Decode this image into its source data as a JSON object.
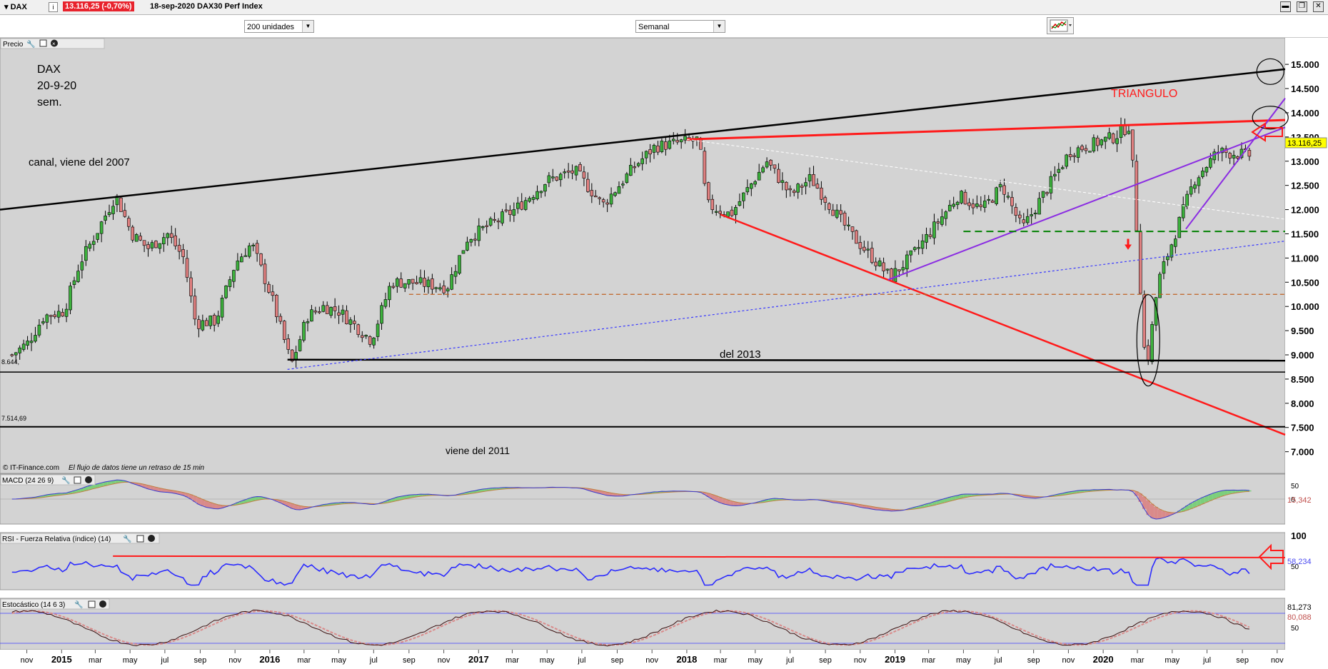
{
  "window": {
    "ticker": "▾ DAX",
    "info_icon": "i",
    "quote": "13.116,25 (-0,70%)",
    "description": "18-sep-2020 DAX30 Perf Index",
    "window_buttons": [
      "▬",
      "❐",
      "✕"
    ]
  },
  "toolbar": {
    "units_select": "200 unidades",
    "period_select": "Semanal",
    "chart_type_icon": "chart-type-icon"
  },
  "panels": {
    "price_label": "Precio",
    "macd_label": "MACD (24 26 9)",
    "rsi_label": "RSI - Fuerza Relativa (índice) (14)",
    "stoch_label": "Estocástico (14 6 3)",
    "copyright": "© IT-Finance.com",
    "delay_note": "El flujo de datos tiene un retraso de 15 min"
  },
  "annotations": {
    "title_line1": "DAX",
    "title_line2": "20-9-20",
    "title_line3": "sem.",
    "canal": "canal, viene del  2007",
    "triangulo": "TRIANGULO",
    "del2013": "del 2013",
    "viene2011": "viene del 2011",
    "level_low1": "8.644,",
    "level_low2": "7.514,69",
    "last_price": "13.116,25",
    "macd_value": "15,342",
    "rsi_value": "58,234",
    "stoch_value1": "81,273",
    "stoch_value2": "80,088"
  },
  "colors": {
    "up_candle": "#3cb13c",
    "down_candle": "#e08080",
    "channel": "#000000",
    "red_line": "#ff1a1a",
    "purple": "#8a2be2",
    "green_dash": "#008000",
    "brown_dash": "#c06020",
    "blue_dot": "#3a3aff",
    "panel_bg": "#d3d3d3",
    "last_price_bg": "#ffff00"
  },
  "chart_data": {
    "type": "candlestick",
    "timeframe": "weekly",
    "y_ticks": [
      "15.000",
      "14.500",
      "14.000",
      "13.500",
      "13.000",
      "12.500",
      "12.000",
      "11.500",
      "11.000",
      "10.500",
      "10.000",
      "9.500",
      "9.000",
      "8.500",
      "8.000",
      "7.500",
      "7.000"
    ],
    "ylim": [
      6700,
      15400
    ],
    "x_labels": [
      "nov",
      "2015",
      "mar",
      "may",
      "jul",
      "sep",
      "nov",
      "2016",
      "mar",
      "may",
      "jul",
      "sep",
      "nov",
      "2017",
      "mar",
      "may",
      "jul",
      "sep",
      "nov",
      "2018",
      "mar",
      "may",
      "jul",
      "sep",
      "nov",
      "2019",
      "mar",
      "may",
      "jul",
      "sep",
      "nov",
      "2020",
      "mar",
      "may",
      "jul",
      "sep",
      "nov"
    ],
    "x_range": [
      "2014-10",
      "2020-11"
    ],
    "close_series": [
      [
        "2014-10-06",
        9000
      ],
      [
        "2014-11-03",
        9250
      ],
      [
        "2014-12-01",
        9800
      ],
      [
        "2015-01-05",
        9900
      ],
      [
        "2015-02-02",
        10900
      ],
      [
        "2015-03-02",
        11500
      ],
      [
        "2015-04-06",
        12300
      ],
      [
        "2015-05-04",
        11500
      ],
      [
        "2015-06-01",
        11200
      ],
      [
        "2015-07-06",
        11500
      ],
      [
        "2015-08-03",
        11000
      ],
      [
        "2015-08-24",
        9650
      ],
      [
        "2015-09-28",
        9700
      ],
      [
        "2015-11-02",
        10900
      ],
      [
        "2015-11-30",
        11300
      ],
      [
        "2016-01-04",
        10200
      ],
      [
        "2016-02-08",
        8800
      ],
      [
        "2016-03-07",
        9800
      ],
      [
        "2016-04-04",
        10000
      ],
      [
        "2016-05-02",
        9900
      ],
      [
        "2016-06-27",
        9300
      ],
      [
        "2016-08-01",
        10500
      ],
      [
        "2016-09-05",
        10500
      ],
      [
        "2016-11-07",
        10400
      ],
      [
        "2016-12-12",
        11400
      ],
      [
        "2017-01-09",
        11600
      ],
      [
        "2017-03-06",
        12000
      ],
      [
        "2017-05-01",
        12600
      ],
      [
        "2017-06-19",
        12800
      ],
      [
        "2017-08-07",
        12100
      ],
      [
        "2017-10-02",
        12900
      ],
      [
        "2017-11-06",
        13300
      ],
      [
        "2018-01-22",
        13450
      ],
      [
        "2018-02-05",
        12100
      ],
      [
        "2018-03-19",
        11900
      ],
      [
        "2018-05-21",
        13000
      ],
      [
        "2018-07-02",
        12300
      ],
      [
        "2018-08-06",
        12650
      ],
      [
        "2018-10-15",
        11500
      ],
      [
        "2018-12-24",
        10600
      ],
      [
        "2019-02-04",
        11100
      ],
      [
        "2019-04-22",
        12300
      ],
      [
        "2019-06-03",
        12000
      ],
      [
        "2019-07-08",
        12500
      ],
      [
        "2019-08-12",
        11600
      ],
      [
        "2019-11-04",
        13200
      ],
      [
        "2020-01-20",
        13500
      ],
      [
        "2020-02-17",
        13750
      ],
      [
        "2020-03-16",
        8600
      ],
      [
        "2020-04-06",
        10500
      ],
      [
        "2020-06-08",
        12600
      ],
      [
        "2020-07-20",
        13200
      ],
      [
        "2020-09-18",
        13116
      ]
    ],
    "lines": [
      {
        "name": "canal",
        "points": [
          [
            "2014-10",
            12000
          ],
          [
            "2020-11",
            14900
          ]
        ]
      },
      {
        "name": "TRIANGULO",
        "points": [
          [
            "2018-01",
            13400
          ],
          [
            "2020-09",
            13850
          ]
        ]
      },
      {
        "name": "del 2013",
        "points": [
          [
            "2016-02",
            8900
          ],
          [
            "2020-11",
            8880
          ]
        ]
      },
      {
        "name": "viene del 2011",
        "points": [
          [
            "2014-10",
            7514.69
          ],
          [
            "2020-11",
            7514.69
          ]
        ]
      }
    ],
    "macd": {
      "label": "MACD (24 26 9)",
      "ticks": [
        "50",
        "0"
      ],
      "last": 15.342
    },
    "rsi": {
      "label": "RSI - Fuerza Relativa (índice) (14)",
      "ticks": [
        "100",
        "50"
      ],
      "last": 58.234
    },
    "stochastic": {
      "label": "Estocástico (14 6 3)",
      "ticks": [
        "50"
      ],
      "last": [
        81.273,
        80.088
      ]
    }
  }
}
